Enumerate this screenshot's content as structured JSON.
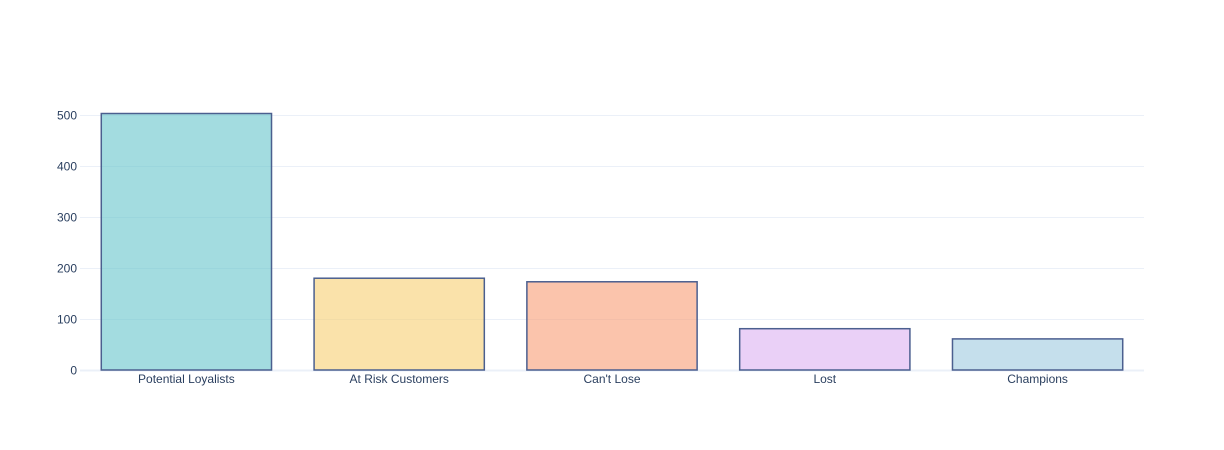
{
  "chart_data": {
    "type": "bar",
    "title": "",
    "xlabel": "",
    "ylabel": "",
    "categories": [
      "Potential Loyalists",
      "At Risk Customers",
      "Can't Lose",
      "Lost",
      "Champions"
    ],
    "values": [
      503,
      180,
      173,
      81,
      61
    ],
    "ylim": [
      0,
      529.5
    ],
    "yticks": [
      0,
      100,
      200,
      300,
      400,
      500
    ],
    "grid": true,
    "legend": "none",
    "colors": [
      "#66c5cc",
      "#f6cf71",
      "#f89c74",
      "#dcb0f2",
      "#9eca e0"
    ],
    "bar_outline_color": "#4b5f8f"
  }
}
